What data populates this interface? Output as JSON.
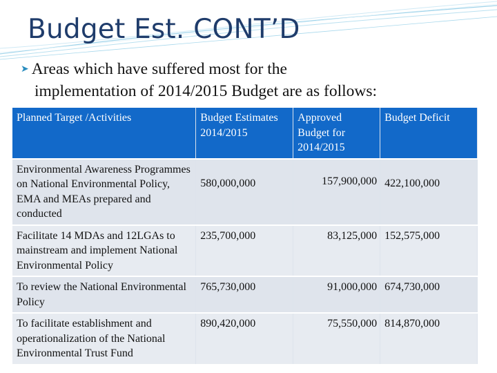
{
  "title": "Budget Est. CONT’D",
  "bullet": {
    "icon": "bullet-arrow-icon",
    "line1": "Areas which have suffered most for the",
    "line2": "implementation of 2014/2015 Budget are as follows:"
  },
  "table": {
    "headers": [
      "Planned Target /Activities",
      "Budget Estimates 2014/2015",
      "Approved Budget for 2014/2015",
      "Budget Deficit"
    ],
    "rows": [
      {
        "activity": "Environmental Awareness Programmes on National Environmental Policy, EMA and MEAs prepared and conducted",
        "estimate": "580,000,000",
        "approved": "157,900,000",
        "deficit": "422,100,000"
      },
      {
        "activity": "Facilitate 14 MDAs and 12LGAs to mainstream and implement National Environmental Policy",
        "estimate": "235,700,000",
        "approved": "83,125,000",
        "deficit": "152,575,000"
      },
      {
        "activity": "To review the National Environmental Policy",
        "estimate": "765,730,000",
        "approved": "91,000,000",
        "deficit": "674,730,000"
      },
      {
        "activity": "To facilitate establishment and operationalization of the National Environmental Trust Fund",
        "estimate": "890,420,000",
        "approved": "75,550,000",
        "deficit": "814,870,000"
      }
    ]
  }
}
